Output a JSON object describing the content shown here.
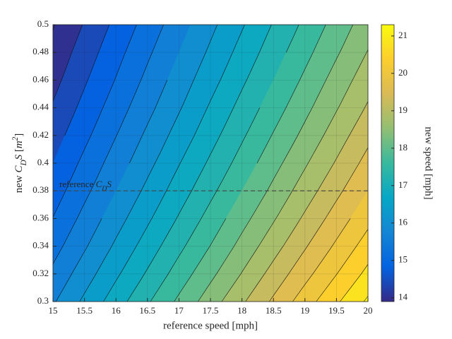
{
  "chart_data": {
    "type": "contourf",
    "xlabel": "reference speed [mph]",
    "ylabel_parts": [
      "new ",
      "C",
      "D",
      "S",
      " [",
      "m",
      "2",
      "]"
    ],
    "colorbar_label": "new speed [mph]",
    "annotation_parts": [
      "reference ",
      "C",
      "D",
      "S"
    ],
    "reference_y": 0.38,
    "x": [
      15,
      15.5,
      16,
      16.5,
      17,
      17.5,
      18,
      18.5,
      19,
      19.5,
      20
    ],
    "y": [
      0.3,
      0.32,
      0.34,
      0.36,
      0.38,
      0.4,
      0.42,
      0.44,
      0.46,
      0.48,
      0.5
    ],
    "z": [
      [
        15.95,
        16.48,
        17.01,
        17.55,
        18.08,
        18.61,
        19.14,
        19.67,
        20.21,
        20.74,
        21.27
      ],
      [
        15.69,
        16.21,
        16.73,
        17.25,
        17.78,
        18.3,
        18.82,
        19.35,
        19.87,
        20.39,
        20.91
      ],
      [
        15.44,
        15.95,
        16.47,
        16.98,
        17.5,
        18.01,
        18.53,
        19.04,
        19.56,
        20.07,
        20.59
      ],
      [
        15.21,
        15.72,
        16.23,
        16.73,
        17.24,
        17.75,
        18.26,
        18.76,
        19.27,
        19.78,
        20.28
      ],
      [
        15,
        15.5,
        16,
        16.5,
        17,
        17.5,
        18,
        18.5,
        19,
        19.5,
        20
      ],
      [
        14.8,
        15.3,
        15.79,
        16.28,
        16.78,
        17.27,
        17.76,
        18.26,
        18.75,
        19.24,
        19.74
      ],
      [
        14.62,
        15.1,
        15.59,
        16.08,
        16.56,
        17.05,
        17.54,
        18.03,
        18.51,
        19,
        19.49
      ],
      [
        14.44,
        14.92,
        15.4,
        15.88,
        16.36,
        16.85,
        17.33,
        17.81,
        18.29,
        18.77,
        19.25
      ],
      [
        14.27,
        14.75,
        15.22,
        15.7,
        16.18,
        16.65,
        17.13,
        17.6,
        18.08,
        18.56,
        19.03
      ],
      [
        14.12,
        14.59,
        15.06,
        15.53,
        16,
        16.47,
        16.94,
        17.41,
        17.88,
        18.35,
        18.82
      ],
      [
        13.97,
        14.43,
        14.9,
        15.36,
        15.83,
        16.3,
        16.76,
        17.23,
        17.69,
        18.16,
        18.62
      ]
    ],
    "levels": [
      14,
      14.4,
      14.8,
      15.2,
      15.6,
      16,
      16.4,
      16.8,
      17.2,
      17.6,
      18,
      18.4,
      18.8,
      19.2,
      19.6,
      20,
      20.4,
      20.8,
      21.2
    ],
    "clim": [
      13.9,
      21.3
    ],
    "colormap": [
      "#352a87",
      "#0363e1",
      "#1485d4",
      "#06a7c6",
      "#38b99e",
      "#92bf73",
      "#d9ba56",
      "#fcce2e",
      "#f9fb0e"
    ],
    "xlim": [
      15,
      20
    ],
    "ylim": [
      0.3,
      0.5
    ],
    "xticks": [
      15,
      15.5,
      16,
      16.5,
      17,
      17.5,
      18,
      18.5,
      19,
      19.5,
      20
    ],
    "yticks": [
      0.3,
      0.32,
      0.34,
      0.36,
      0.38,
      0.4,
      0.42,
      0.44,
      0.46,
      0.48,
      0.5
    ],
    "cticks": [
      14,
      15,
      16,
      17,
      18,
      19,
      20,
      21
    ],
    "grid": true
  }
}
